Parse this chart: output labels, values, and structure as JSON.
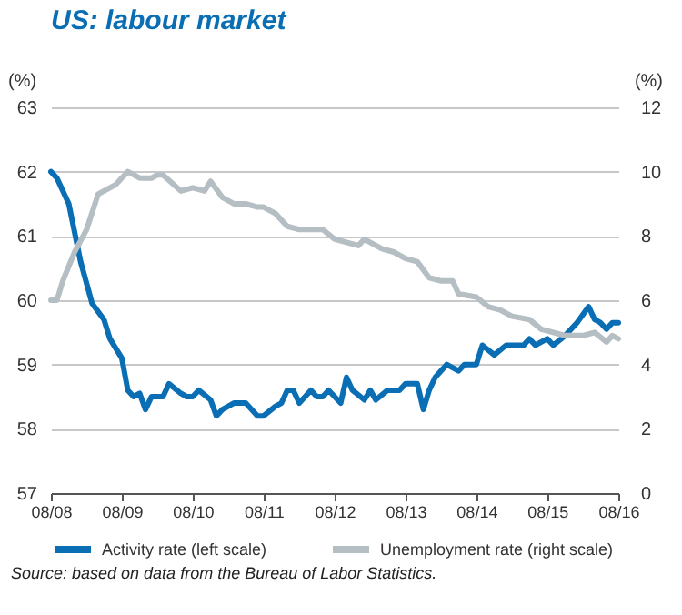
{
  "chart_data": {
    "type": "line",
    "title": "US: labour market",
    "ylabel": "(%)",
    "y2label": "(%)",
    "annotations": [
      "Source: based on data from the Bureau of Labor Statistics."
    ],
    "xlim": [
      "2008-08",
      "2016-08"
    ],
    "xticks": [
      {
        "value": "2008-08",
        "label": "08/08"
      },
      {
        "value": "2009-08",
        "label": "08/09"
      },
      {
        "value": "2010-08",
        "label": "08/10"
      },
      {
        "value": "2011-08",
        "label": "08/11"
      },
      {
        "value": "2012-08",
        "label": "08/12"
      },
      {
        "value": "2013-08",
        "label": "08/13"
      },
      {
        "value": "2014-08",
        "label": "08/14"
      },
      {
        "value": "2015-08",
        "label": "08/15"
      },
      {
        "value": "2016-08",
        "label": "08/16"
      }
    ],
    "ylim": [
      57,
      63
    ],
    "yticks": [
      57,
      58,
      59,
      60,
      61,
      62,
      63
    ],
    "y2lim": [
      0,
      12
    ],
    "y2ticks": [
      0,
      2,
      4,
      6,
      8,
      10,
      12
    ],
    "grid": "y",
    "legend": "bottom",
    "series": [
      {
        "name": "Activity rate (left scale)",
        "color": "#0a6eb4",
        "axis": "y",
        "x": [
          "2008-08",
          "2008-09",
          "2008-11",
          "2009-01",
          "2009-03",
          "2009-05",
          "2009-06",
          "2009-08",
          "2009-09",
          "2009-10",
          "2009-11",
          "2009-12",
          "2010-01",
          "2010-03",
          "2010-04",
          "2010-06",
          "2010-07",
          "2010-08",
          "2010-09",
          "2010-11",
          "2010-12",
          "2011-01",
          "2011-03",
          "2011-05",
          "2011-07",
          "2011-08",
          "2011-10",
          "2011-11",
          "2011-12",
          "2012-01",
          "2012-02",
          "2012-04",
          "2012-05",
          "2012-06",
          "2012-07",
          "2012-09",
          "2012-10",
          "2012-11",
          "2013-01",
          "2013-02",
          "2013-03",
          "2013-05",
          "2013-07",
          "2013-08",
          "2013-10",
          "2013-11",
          "2013-12",
          "2014-01",
          "2014-03",
          "2014-05",
          "2014-06",
          "2014-08",
          "2014-09",
          "2014-11",
          "2015-01",
          "2015-04",
          "2015-05",
          "2015-06",
          "2015-08",
          "2015-09",
          "2015-11",
          "2016-01",
          "2016-03",
          "2016-04",
          "2016-05",
          "2016-06",
          "2016-07",
          "2016-08"
        ],
        "values": [
          62.0,
          61.9,
          61.5,
          60.6,
          59.95,
          59.7,
          59.4,
          59.1,
          58.6,
          58.5,
          58.55,
          58.3,
          58.5,
          58.5,
          58.7,
          58.55,
          58.5,
          58.5,
          58.6,
          58.45,
          58.2,
          58.3,
          58.4,
          58.4,
          58.2,
          58.2,
          58.35,
          58.4,
          58.6,
          58.6,
          58.4,
          58.6,
          58.5,
          58.5,
          58.6,
          58.4,
          58.8,
          58.6,
          58.45,
          58.6,
          58.45,
          58.6,
          58.6,
          58.7,
          58.7,
          58.3,
          58.6,
          58.8,
          59.0,
          58.9,
          59.0,
          59.0,
          59.3,
          59.15,
          59.3,
          59.3,
          59.4,
          59.3,
          59.4,
          59.3,
          59.45,
          59.65,
          59.9,
          59.7,
          59.65,
          59.55,
          59.65,
          59.65
        ]
      },
      {
        "name": "Unemployment rate (right scale)",
        "color": "#b4bec3",
        "axis": "y2",
        "x": [
          "2008-08",
          "2008-09",
          "2008-10",
          "2008-12",
          "2009-02",
          "2009-04",
          "2009-06",
          "2009-07",
          "2009-09",
          "2009-11",
          "2010-01",
          "2010-02",
          "2010-03",
          "2010-06",
          "2010-08",
          "2010-10",
          "2010-11",
          "2011-01",
          "2011-03",
          "2011-05",
          "2011-07",
          "2011-08",
          "2011-10",
          "2011-12",
          "2012-02",
          "2012-06",
          "2012-08",
          "2012-10",
          "2012-12",
          "2013-01",
          "2013-04",
          "2013-06",
          "2013-08",
          "2013-10",
          "2013-12",
          "2014-02",
          "2014-04",
          "2014-05",
          "2014-08",
          "2014-10",
          "2014-12",
          "2015-02",
          "2015-05",
          "2015-07",
          "2015-09",
          "2015-11",
          "2016-02",
          "2016-04",
          "2016-06",
          "2016-07",
          "2016-08"
        ],
        "values": [
          6.0,
          6.0,
          6.6,
          7.5,
          8.2,
          9.3,
          9.5,
          9.6,
          10.0,
          9.8,
          9.8,
          9.9,
          9.9,
          9.4,
          9.5,
          9.4,
          9.7,
          9.2,
          9.0,
          9.0,
          8.9,
          8.9,
          8.7,
          8.3,
          8.2,
          8.2,
          7.9,
          7.8,
          7.7,
          7.9,
          7.6,
          7.5,
          7.3,
          7.2,
          6.7,
          6.6,
          6.6,
          6.2,
          6.1,
          5.8,
          5.7,
          5.5,
          5.4,
          5.1,
          5.0,
          4.9,
          4.9,
          5.0,
          4.7,
          4.9,
          4.8
        ]
      }
    ]
  }
}
